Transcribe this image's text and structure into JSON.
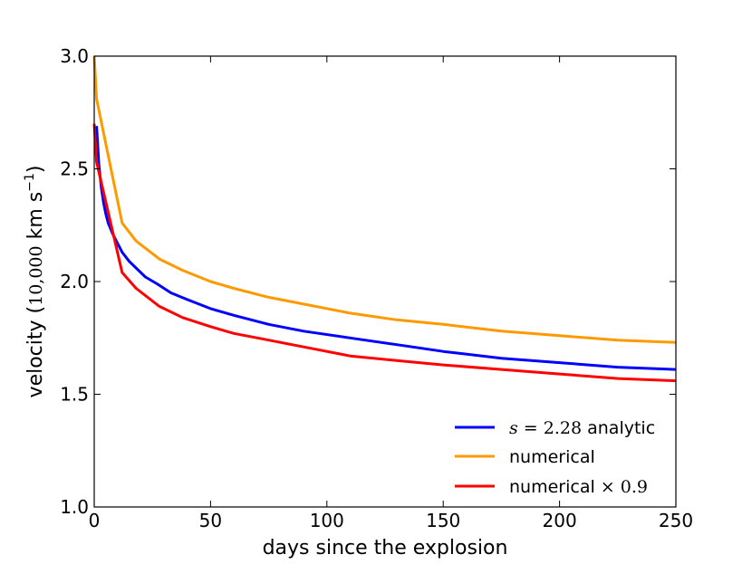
{
  "chart_data": {
    "type": "line",
    "xlabel": "days since the explosion",
    "ylabel": {
      "prefix": "velocity (",
      "num": "10,000",
      "unit": " km s",
      "sup": "−1",
      "suffix": ")"
    },
    "xlim": [
      0,
      250
    ],
    "ylim": [
      1.0,
      3.0
    ],
    "xticks": [
      0,
      50,
      100,
      150,
      200,
      250
    ],
    "yticks": [
      "1.0",
      "1.5",
      "2.0",
      "2.5",
      "3.0"
    ],
    "grid": false,
    "legend_position": "lower-right",
    "series": [
      {
        "name": "s = 2.28 analytic",
        "name_parts": {
          "math": "s",
          "eq": " = ",
          "num": "2.28",
          "text": " analytic"
        },
        "color": "#0000ff",
        "x": [
          1,
          2,
          3,
          4,
          5,
          6,
          8,
          10,
          12,
          15,
          18,
          22,
          27,
          33,
          40,
          50,
          60,
          75,
          90,
          110,
          130,
          150,
          175,
          200,
          225,
          250
        ],
        "y": [
          2.69,
          2.52,
          2.42,
          2.35,
          2.3,
          2.26,
          2.21,
          2.17,
          2.13,
          2.09,
          2.06,
          2.02,
          1.99,
          1.95,
          1.92,
          1.88,
          1.85,
          1.81,
          1.78,
          1.75,
          1.72,
          1.69,
          1.66,
          1.64,
          1.62,
          1.61
        ]
      },
      {
        "name": "numerical",
        "name_parts": {
          "text": "numerical"
        },
        "color": "#ff9900",
        "x": [
          0,
          1,
          12,
          18,
          28,
          38,
          50,
          60,
          75,
          90,
          110,
          130,
          150,
          175,
          200,
          225,
          250
        ],
        "y": [
          3.0,
          2.81,
          2.26,
          2.18,
          2.1,
          2.05,
          2.0,
          1.97,
          1.93,
          1.9,
          1.86,
          1.83,
          1.81,
          1.78,
          1.76,
          1.74,
          1.73
        ]
      },
      {
        "name": "numerical × 0.9",
        "name_parts": {
          "text": "numerical ",
          "math": "× 0.9"
        },
        "color": "#ff0000",
        "x": [
          0,
          1,
          12,
          18,
          28,
          38,
          50,
          60,
          75,
          90,
          110,
          130,
          150,
          175,
          200,
          225,
          250
        ],
        "y": [
          2.7,
          2.53,
          2.04,
          1.97,
          1.89,
          1.84,
          1.8,
          1.77,
          1.74,
          1.71,
          1.67,
          1.65,
          1.63,
          1.61,
          1.59,
          1.57,
          1.56
        ]
      }
    ]
  }
}
